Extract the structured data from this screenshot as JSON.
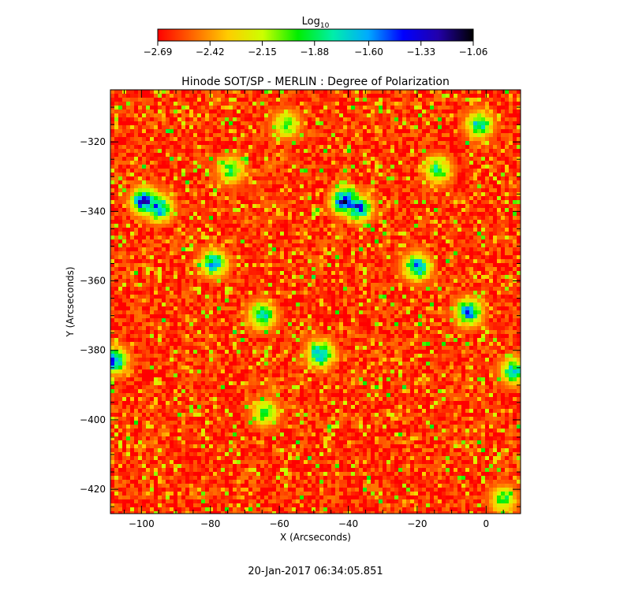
{
  "chart_data": {
    "type": "heatmap",
    "title": "Hinode SOT/SP - MERLIN : Degree of Polarization",
    "xlabel": "X (Arcseconds)",
    "ylabel": "Y (Arcseconds)",
    "xlim": [
      -109,
      10
    ],
    "ylim": [
      -427,
      -305
    ],
    "x_ticks": [
      -100,
      -80,
      -60,
      -40,
      -20,
      0
    ],
    "y_ticks": [
      -320,
      -340,
      -360,
      -380,
      -400,
      -420
    ],
    "x_tick_labels": [
      "−100",
      "−80",
      "−60",
      "−40",
      "−20",
      "0"
    ],
    "y_tick_labels": [
      "−320",
      "−340",
      "−360",
      "−380",
      "−400",
      "−420"
    ],
    "colorbar": {
      "label_base": "Log",
      "label_sub": "10",
      "range": [
        -2.69,
        -1.06
      ],
      "ticks": [
        -2.69,
        -2.42,
        -2.15,
        -1.88,
        -1.6,
        -1.33,
        -1.06
      ],
      "tick_labels": [
        "−2.69",
        "−2.42",
        "−2.15",
        "−1.88",
        "−1.60",
        "−1.33",
        "−1.06"
      ],
      "colors": [
        "#ff0000",
        "#ff6600",
        "#ffcc00",
        "#ccff00",
        "#00ee00",
        "#00eeaa",
        "#00aaff",
        "#0000ff",
        "#2200aa",
        "#000000"
      ]
    },
    "background_level": -2.6,
    "features": [
      {
        "x": -99,
        "y": -337,
        "peak": -1.2
      },
      {
        "x": -95,
        "y": -339,
        "peak": -1.4
      },
      {
        "x": -41,
        "y": -337,
        "peak": -1.2
      },
      {
        "x": -37,
        "y": -339,
        "peak": -1.4
      },
      {
        "x": -79,
        "y": -355,
        "peak": -1.6
      },
      {
        "x": -65,
        "y": -370,
        "peak": -1.6
      },
      {
        "x": -48,
        "y": -381,
        "peak": -1.5
      },
      {
        "x": -108,
        "y": -383,
        "peak": -1.5
      },
      {
        "x": -20,
        "y": -356,
        "peak": -1.5
      },
      {
        "x": -5,
        "y": -369,
        "peak": -1.5
      },
      {
        "x": -14,
        "y": -328,
        "peak": -1.8
      },
      {
        "x": -2,
        "y": -315,
        "peak": -1.7
      },
      {
        "x": -74,
        "y": -328,
        "peak": -1.9
      },
      {
        "x": 8,
        "y": -386,
        "peak": -1.7
      },
      {
        "x": 5,
        "y": -423,
        "peak": -1.9
      },
      {
        "x": -64,
        "y": -398,
        "peak": -1.9
      },
      {
        "x": -58,
        "y": -315,
        "peak": -1.9
      }
    ]
  },
  "footer": {
    "timestamp": "20-Jan-2017 06:34:05.851"
  }
}
